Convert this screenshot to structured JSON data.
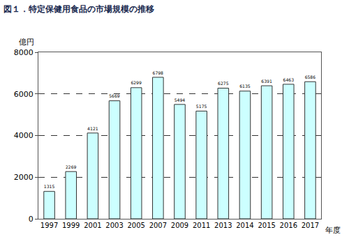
{
  "chart_data": {
    "type": "bar",
    "title": "図１．特定保健用食品の市場規模の推移",
    "x_label": "年度",
    "y_label": "億円",
    "categories": [
      "1997",
      "1999",
      "2001",
      "2003",
      "2005",
      "2007",
      "2009",
      "2011",
      "2013",
      "2014",
      "2015",
      "2016",
      "2017"
    ],
    "values": [
      1315,
      2269,
      4121,
      5669,
      6299,
      6798,
      5494,
      5175,
      6275,
      6135,
      6391,
      6463,
      6586
    ],
    "color": "#ccffff",
    "ylim": [
      0,
      8000
    ],
    "yticks": [
      0,
      2000,
      4000,
      6000,
      8000
    ],
    "grid": true,
    "data_labels": true
  }
}
